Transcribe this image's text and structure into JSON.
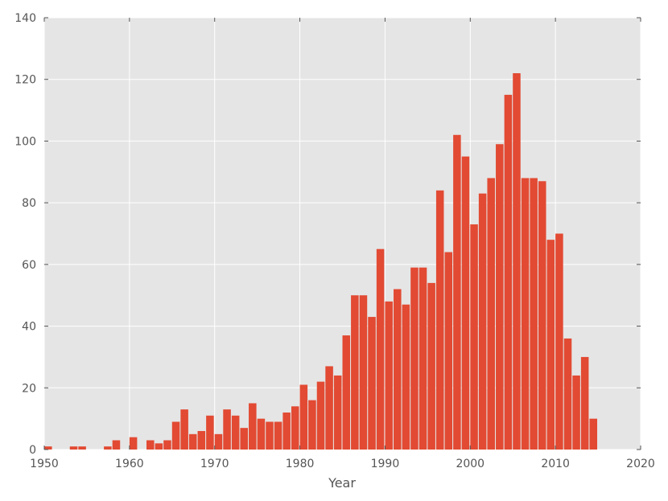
{
  "chart_data": {
    "type": "bar",
    "title": "",
    "xlabel": "Year",
    "ylabel": "",
    "xlim": [
      1950,
      2020
    ],
    "ylim": [
      0,
      140
    ],
    "xticks": [
      "1950",
      "1960",
      "1970",
      "1980",
      "1990",
      "2000",
      "2010",
      "2020"
    ],
    "yticks": [
      "0",
      "20",
      "40",
      "60",
      "80",
      "100",
      "120",
      "140"
    ],
    "grid": true,
    "colors": {
      "bar": "#E24A33",
      "background": "#E5E5E5",
      "grid": "#FFFFFF"
    },
    "x": [
      1950,
      1953,
      1954,
      1957,
      1958,
      1960,
      1962,
      1963,
      1964,
      1965,
      1966,
      1967,
      1968,
      1969,
      1970,
      1971,
      1972,
      1973,
      1974,
      1975,
      1976,
      1977,
      1978,
      1979,
      1980,
      1981,
      1982,
      1983,
      1984,
      1985,
      1986,
      1987,
      1988,
      1989,
      1990,
      1991,
      1992,
      1993,
      1994,
      1995,
      1996,
      1997,
      1998,
      1999,
      2000,
      2001,
      2002,
      2003,
      2004,
      2005,
      2006,
      2007,
      2008,
      2009,
      2010,
      2011,
      2012,
      2013,
      2014
    ],
    "values": [
      1,
      1,
      1,
      1,
      3,
      4,
      3,
      2,
      3,
      9,
      13,
      5,
      6,
      11,
      5,
      13,
      11,
      7,
      15,
      10,
      9,
      9,
      12,
      14,
      21,
      16,
      22,
      27,
      24,
      37,
      50,
      50,
      43,
      65,
      48,
      52,
      47,
      59,
      59,
      54,
      84,
      64,
      102,
      95,
      73,
      83,
      88,
      99,
      115,
      122,
      88,
      88,
      87,
      68,
      70,
      36,
      24,
      30,
      10
    ]
  }
}
